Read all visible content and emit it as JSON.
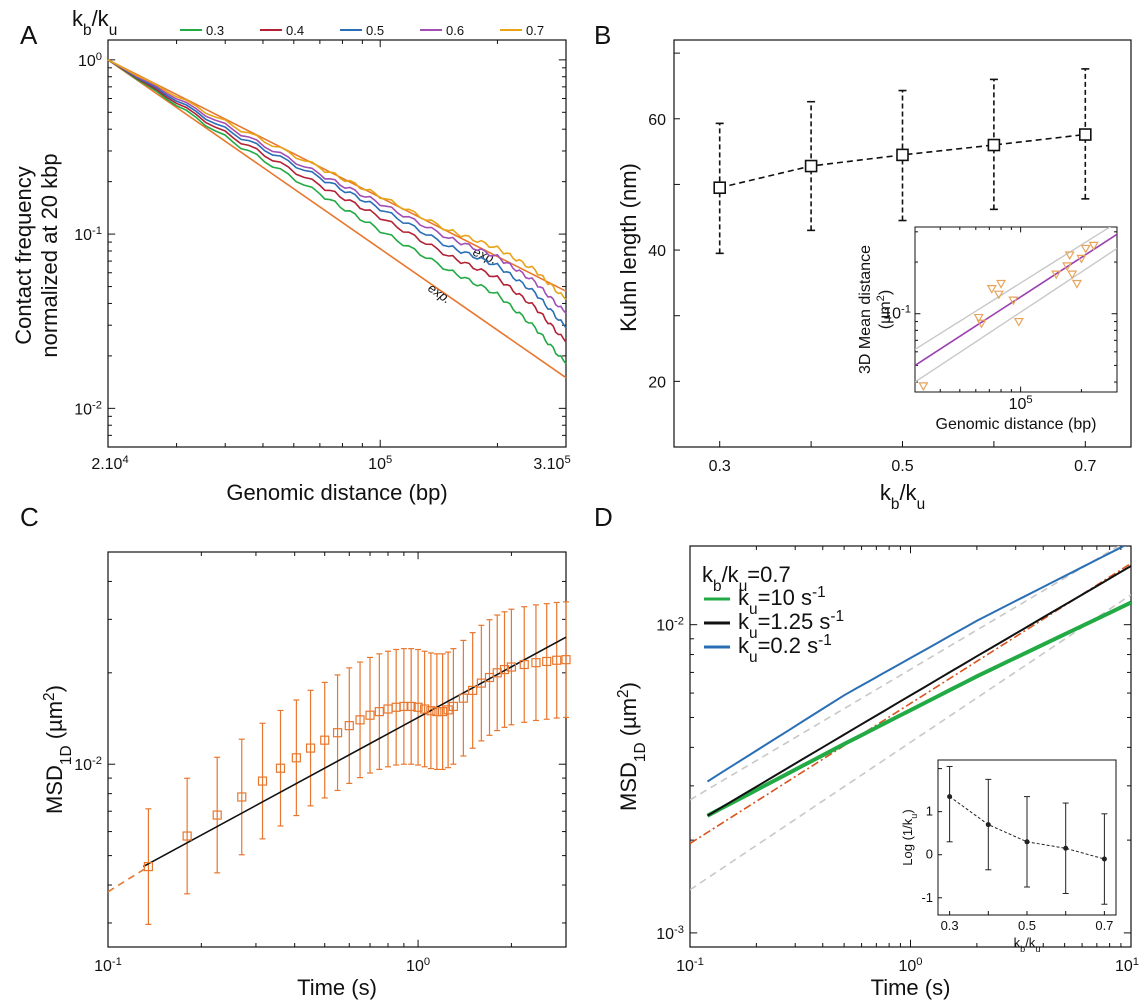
{
  "chart_data": [
    {
      "panel": "A",
      "type": "line",
      "xlabel": "Genomic distance (bp)",
      "ylabel": "Contact frequency\nnormalized at 20 kbp",
      "x_scale": "log",
      "y_scale": "log",
      "xlim": [
        20000,
        300000
      ],
      "ylim": [
        0.006,
        1.3
      ],
      "x_ticks": [
        {
          "v": 20000,
          "label": "2.10",
          "sup": "4"
        },
        {
          "v": 100000,
          "label": "10",
          "sup": "5"
        },
        {
          "v": 300000,
          "label": "3.10",
          "sup": "5"
        }
      ],
      "y_ticks": [
        {
          "v": 1,
          "label": "10",
          "sup": "0"
        },
        {
          "v": 0.1,
          "label": "10",
          "sup": "-1"
        },
        {
          "v": 0.01,
          "label": "10",
          "sup": "-2"
        }
      ],
      "legend_title": {
        "text": "k",
        "sub1": "b",
        "mid": "/k",
        "sub2": "u"
      },
      "legend_position": "top",
      "series": [
        {
          "name": "0.3",
          "color": "#22aa44",
          "x": [
            20000,
            40000,
            70000,
            100000,
            150000,
            200000,
            250000,
            300000
          ],
          "y": [
            1,
            0.36,
            0.17,
            0.105,
            0.062,
            0.045,
            0.029,
            0.018
          ]
        },
        {
          "name": "0.4",
          "color": "#b22234",
          "x": [
            20000,
            40000,
            70000,
            100000,
            150000,
            200000,
            250000,
            300000
          ],
          "y": [
            1,
            0.38,
            0.19,
            0.125,
            0.075,
            0.056,
            0.038,
            0.024
          ]
        },
        {
          "name": "0.5",
          "color": "#2a6fb5",
          "x": [
            20000,
            40000,
            70000,
            100000,
            150000,
            200000,
            250000,
            300000
          ],
          "y": [
            1,
            0.4,
            0.21,
            0.14,
            0.085,
            0.066,
            0.046,
            0.029
          ]
        },
        {
          "name": "0.6",
          "color": "#a24fb5",
          "x": [
            20000,
            40000,
            70000,
            100000,
            150000,
            200000,
            250000,
            300000
          ],
          "y": [
            1,
            0.42,
            0.22,
            0.15,
            0.095,
            0.074,
            0.053,
            0.035
          ]
        },
        {
          "name": "0.7",
          "color": "#e8a317",
          "x": [
            20000,
            40000,
            70000,
            100000,
            150000,
            200000,
            250000,
            300000
          ],
          "y": [
            1,
            0.44,
            0.24,
            0.165,
            0.105,
            0.083,
            0.062,
            0.042
          ]
        }
      ],
      "reference_lines": [
        {
          "label": "exp.",
          "color": "#e8772e",
          "x": [
            20000,
            300000
          ],
          "y": [
            1,
            0.047
          ]
        },
        {
          "label": "exp.",
          "color": "#e8772e",
          "x": [
            20000,
            300000
          ],
          "y": [
            1,
            0.015
          ]
        }
      ]
    },
    {
      "panel": "B",
      "type": "scatter",
      "xlabel": {
        "text": "k",
        "sub1": "b",
        "mid": "/k",
        "sub2": "u"
      },
      "ylabel": "Kuhn length (nm)",
      "xlim": [
        0.25,
        0.75
      ],
      "ylim": [
        10,
        72
      ],
      "x_ticks": [
        "0.3",
        "0.5",
        "0.7"
      ],
      "y_ticks": [
        "20",
        "40",
        "60"
      ],
      "series": [
        {
          "x": [
            0.3,
            0.4,
            0.5,
            0.6,
            0.7
          ],
          "y": [
            49.5,
            52.8,
            54.5,
            56.0,
            57.6
          ],
          "err_low": [
            39.5,
            43.0,
            44.5,
            46.2,
            47.8
          ],
          "err_high": [
            59.3,
            62.6,
            64.3,
            66.0,
            67.6
          ],
          "color": "#111111"
        }
      ],
      "inset": {
        "xlabel": "Genomic distance (bp)",
        "ylabel": "3D Mean distance",
        "ylabel_unit": {
          "text": "(µm",
          "sup": "2",
          "end": ")"
        },
        "x_scale": "log",
        "y_scale": "log",
        "xlim": [
          30000,
          300000
        ],
        "ylim": [
          0.035,
          0.32
        ],
        "x_ticks": [
          {
            "v": 100000,
            "label": "10",
            "sup": "5"
          }
        ],
        "y_ticks": [
          {
            "v": 0.1,
            "label": "10",
            "sup": "-1"
          }
        ],
        "fit": {
          "color": "#9b3fb0",
          "x": [
            30000,
            300000
          ],
          "y": [
            0.05,
            0.29
          ]
        },
        "bounds": [
          {
            "color": "#c8c8c8",
            "x": [
              30000,
              300000
            ],
            "y": [
              0.062,
              0.34
            ]
          },
          {
            "color": "#c8c8c8",
            "x": [
              30000,
              300000
            ],
            "y": [
              0.04,
              0.24
            ]
          }
        ],
        "points": {
          "color": "#e8a35a",
          "x": [
            33000,
            62000,
            64000,
            72000,
            78000,
            80000,
            92000,
            98000,
            150000,
            170000,
            175000,
            180000,
            190000,
            200000,
            210000,
            230000
          ],
          "y": [
            0.038,
            0.095,
            0.088,
            0.14,
            0.13,
            0.15,
            0.12,
            0.09,
            0.17,
            0.19,
            0.22,
            0.17,
            0.15,
            0.21,
            0.24,
            0.25
          ]
        }
      }
    },
    {
      "panel": "C",
      "type": "scatter",
      "xlabel": "Time (s)",
      "ylabel": {
        "text": "MSD",
        "sub": "1D",
        "unit": " (µm",
        "sup": "2",
        "end": ")"
      },
      "x_scale": "log",
      "y_scale": "log",
      "xlim": [
        0.1,
        3.0
      ],
      "ylim": [
        0.0025,
        0.05
      ],
      "x_ticks": [
        {
          "v": 0.1,
          "label": "10",
          "sup": "-1"
        },
        {
          "v": 1,
          "label": "10",
          "sup": "0"
        }
      ],
      "y_ticks": [
        {
          "v": 0.01,
          "label": "10",
          "sup": "-2"
        }
      ],
      "series": [
        {
          "name": "data",
          "color": "#e8772e",
          "x": [
            0.135,
            0.18,
            0.225,
            0.27,
            0.315,
            0.36,
            0.405,
            0.45,
            0.5,
            0.55,
            0.6,
            0.65,
            0.7,
            0.75,
            0.8,
            0.85,
            0.9,
            0.95,
            1.0,
            1.05,
            1.1,
            1.15,
            1.2,
            1.25,
            1.3,
            1.4,
            1.5,
            1.6,
            1.7,
            1.8,
            1.9,
            2.0,
            2.2,
            2.4,
            2.6,
            2.8,
            3.0
          ],
          "y": [
            0.0046,
            0.0058,
            0.0068,
            0.0078,
            0.0088,
            0.0097,
            0.0105,
            0.0113,
            0.012,
            0.0127,
            0.0134,
            0.014,
            0.0145,
            0.0149,
            0.0152,
            0.0154,
            0.0155,
            0.0155,
            0.0154,
            0.0152,
            0.015,
            0.0149,
            0.0149,
            0.0151,
            0.0155,
            0.0165,
            0.0175,
            0.0185,
            0.0193,
            0.02,
            0.0205,
            0.0209,
            0.0213,
            0.0216,
            0.0218,
            0.022,
            0.0221
          ],
          "err_factor": 1.55
        }
      ],
      "fits": [
        {
          "style": "solid",
          "color": "#111111",
          "x": [
            0.13,
            3.0
          ],
          "y": [
            0.0046,
            0.0262
          ]
        },
        {
          "style": "dashed",
          "color": "#e8772e",
          "x": [
            0.1,
            0.135
          ],
          "y": [
            0.0038,
            0.0046
          ]
        }
      ]
    },
    {
      "panel": "D",
      "type": "line",
      "xlabel": "Time (s)",
      "ylabel": {
        "text": "MSD",
        "sub": "1D",
        "unit": " (µm",
        "sup": "2",
        "end": ")"
      },
      "x_scale": "log",
      "y_scale": "log",
      "xlim": [
        0.1,
        10
      ],
      "ylim": [
        0.0009,
        0.018
      ],
      "x_ticks": [
        {
          "v": 0.1,
          "label": "10",
          "sup": "-1"
        },
        {
          "v": 1,
          "label": "10",
          "sup": "0"
        },
        {
          "v": 10,
          "label": "10",
          "sup": "1"
        }
      ],
      "y_ticks": [
        {
          "v": 0.01,
          "label": "10",
          "sup": "-2"
        },
        {
          "v": 0.001,
          "label": "10",
          "sup": "-3"
        }
      ],
      "legend_title": {
        "text": "k",
        "sub1": "b",
        "mid": "/k",
        "sub2": "u",
        "end": "=0.7"
      },
      "legend_position": "top-left",
      "series": [
        {
          "name": {
            "text": "k",
            "sub": "u",
            "value": "=10 s",
            "sup": "-1"
          },
          "color": "#22aa44",
          "x": [
            0.12,
            0.5,
            2,
            10
          ],
          "y": [
            0.0024,
            0.0041,
            0.0068,
            0.0118
          ]
        },
        {
          "name": {
            "text": "k",
            "sub": "u",
            "value": "=1.25 s",
            "sup": "-1"
          },
          "color": "#111111",
          "x": [
            0.12,
            0.5,
            2,
            10
          ],
          "y": [
            0.0024,
            0.0044,
            0.0079,
            0.0155
          ]
        },
        {
          "name": {
            "text": "k",
            "sub": "u",
            "value": "=0.2 s",
            "sup": "-1"
          },
          "color": "#2a6fb5",
          "x": [
            0.12,
            0.5,
            2,
            10
          ],
          "y": [
            0.0031,
            0.0059,
            0.0103,
            0.0185
          ]
        }
      ],
      "reference_lines": [
        {
          "style": "dashed",
          "color": "#c8c8c8",
          "x": [
            0.1,
            10
          ],
          "y": [
            0.0027,
            0.019
          ]
        },
        {
          "style": "dashed",
          "color": "#c8c8c8",
          "x": [
            0.1,
            10
          ],
          "y": [
            0.00138,
            0.0125
          ]
        },
        {
          "style": "dashdot",
          "color": "#d9531e",
          "x": [
            0.1,
            10
          ],
          "y": [
            0.00195,
            0.0158
          ]
        }
      ],
      "inset": {
        "xlabel": {
          "text": "k",
          "sub1": "b",
          "mid": "/k",
          "sub2": "u"
        },
        "ylabel": {
          "text": "Log (1/k",
          "sub": "u",
          "end": ")"
        },
        "xlim": [
          0.27,
          0.73
        ],
        "ylim": [
          -1.4,
          2.2
        ],
        "x_ticks": [
          "0.3",
          "0.5",
          "0.7"
        ],
        "y_ticks": [
          "1",
          "0",
          "-1"
        ],
        "series": [
          {
            "x": [
              0.3,
              0.4,
              0.5,
              0.6,
              0.7
            ],
            "y": [
              1.35,
              0.7,
              0.3,
              0.15,
              -0.1
            ],
            "err_low": [
              0.3,
              -0.35,
              -0.75,
              -0.9,
              -1.15
            ],
            "err_high": [
              2.05,
              1.75,
              1.35,
              1.2,
              0.95
            ],
            "color": "#222222"
          }
        ]
      }
    }
  ],
  "panels": {
    "a": "A",
    "b": "B",
    "c": "C",
    "d": "D"
  }
}
